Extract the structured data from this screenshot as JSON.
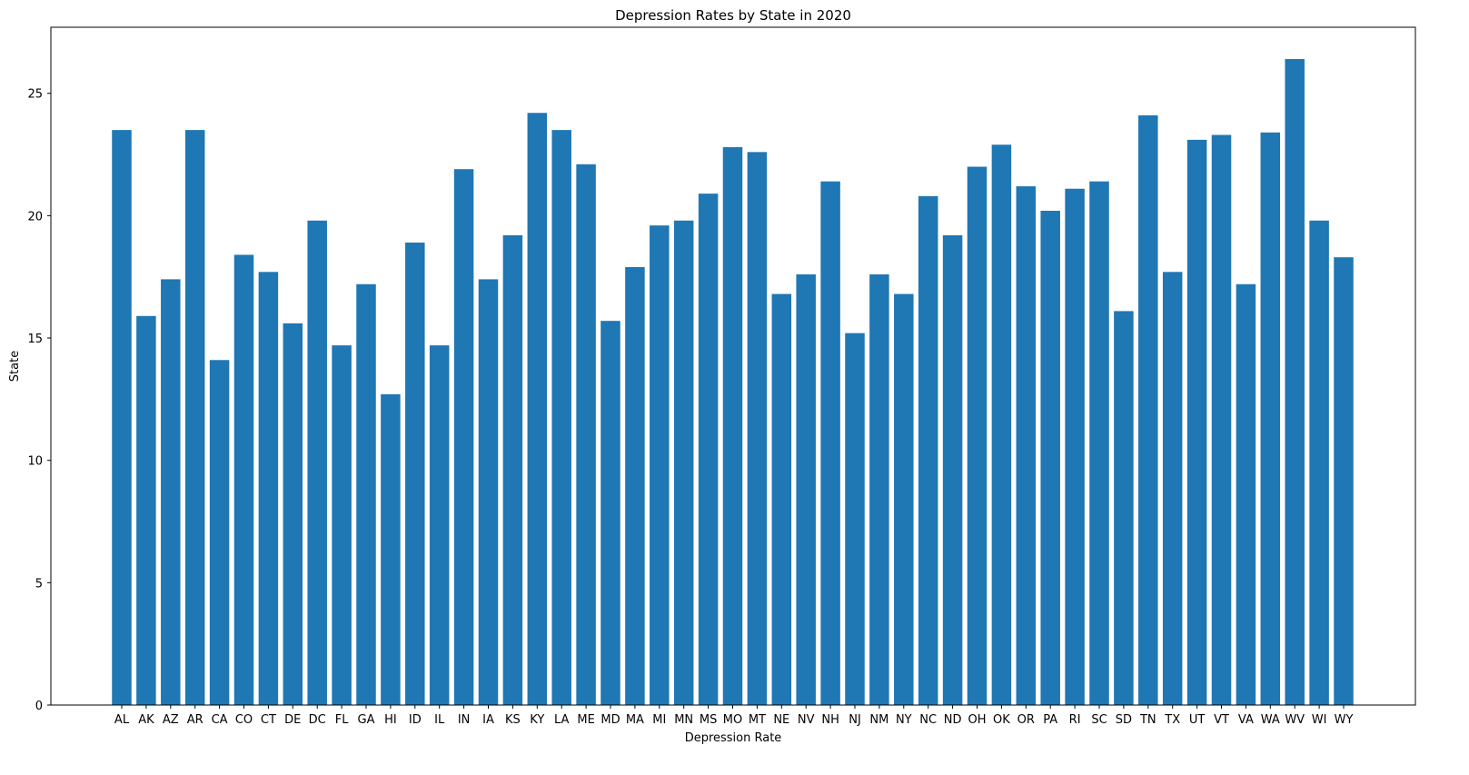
{
  "chart_data": {
    "type": "bar",
    "title": "Depression Rates by State in 2020",
    "xlabel": "Depression Rate",
    "ylabel": "State",
    "categories": [
      "AL",
      "AK",
      "AZ",
      "AR",
      "CA",
      "CO",
      "CT",
      "DE",
      "DC",
      "FL",
      "GA",
      "HI",
      "ID",
      "IL",
      "IN",
      "IA",
      "KS",
      "KY",
      "LA",
      "ME",
      "MD",
      "MA",
      "MI",
      "MN",
      "MS",
      "MO",
      "MT",
      "NE",
      "NV",
      "NH",
      "NJ",
      "NM",
      "NY",
      "NC",
      "ND",
      "OH",
      "OK",
      "OR",
      "PA",
      "RI",
      "SC",
      "SD",
      "TN",
      "TX",
      "UT",
      "VT",
      "VA",
      "WA",
      "WV",
      "WI",
      "WY"
    ],
    "values": [
      23.5,
      15.9,
      17.4,
      23.5,
      14.1,
      18.4,
      17.7,
      15.6,
      19.8,
      14.7,
      17.2,
      12.7,
      18.9,
      14.7,
      21.9,
      17.4,
      19.2,
      24.2,
      23.5,
      22.1,
      15.7,
      17.9,
      19.6,
      19.8,
      20.9,
      22.8,
      22.6,
      16.8,
      17.6,
      21.4,
      15.2,
      17.6,
      16.8,
      20.8,
      19.2,
      22.0,
      22.9,
      21.2,
      20.2,
      21.1,
      21.4,
      16.1,
      24.1,
      17.7,
      23.1,
      23.3,
      17.2,
      23.4,
      26.4,
      19.8,
      18.3
    ],
    "ylim": [
      0,
      27.7
    ],
    "yticks": [
      0,
      5,
      10,
      15,
      20,
      25
    ],
    "grid": false,
    "bar_color": "#1f77b4"
  }
}
